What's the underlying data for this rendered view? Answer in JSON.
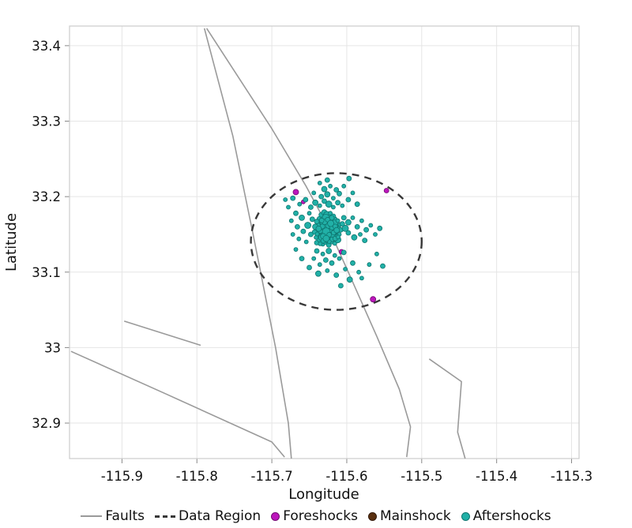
{
  "figure": {
    "background": "#ffffff"
  },
  "chart_data": {
    "type": "scatter",
    "title": "",
    "xlabel": "Longitude",
    "ylabel": "Latitude",
    "xlim": [
      -115.97,
      -115.29
    ],
    "ylim": [
      32.853,
      33.426
    ],
    "grid": true,
    "grid_color": "#e5e5e5",
    "frame_color": "#cccccc",
    "x_ticks": [
      -115.9,
      -115.8,
      -115.7,
      -115.6,
      -115.5,
      -115.4,
      -115.3
    ],
    "x_tick_labels": [
      "-115.9",
      "-115.8",
      "-115.7",
      "-115.6",
      "-115.5",
      "-115.4",
      "-115.3"
    ],
    "y_ticks": [
      32.9,
      33.0,
      33.1,
      33.2,
      33.3,
      33.4
    ],
    "y_tick_labels": [
      "32.9",
      "33",
      "33.1",
      "33.2",
      "33.3",
      "33.4"
    ],
    "legend_position": "bottom",
    "faults": {
      "label": "Faults",
      "color": "#9a9a9a",
      "width": 1.6,
      "lines": [
        [
          [
            -115.787,
            33.423
          ],
          [
            -115.7,
            33.29
          ],
          [
            -115.655,
            33.215
          ],
          [
            -115.625,
            33.16
          ],
          [
            -115.598,
            33.1
          ],
          [
            -115.56,
            33.015
          ],
          [
            -115.53,
            32.945
          ],
          [
            -115.515,
            32.895
          ],
          [
            -115.52,
            32.855
          ]
        ],
        [
          [
            -115.79,
            33.423
          ],
          [
            -115.752,
            33.28
          ],
          [
            -115.725,
            33.15
          ],
          [
            -115.695,
            33.0
          ],
          [
            -115.678,
            32.9
          ],
          [
            -115.674,
            32.853
          ]
        ],
        [
          [
            -115.968,
            32.995
          ],
          [
            -115.84,
            32.938
          ],
          [
            -115.7,
            32.875
          ],
          [
            -115.683,
            32.855
          ]
        ],
        [
          [
            -115.897,
            33.035
          ],
          [
            -115.795,
            33.003
          ]
        ],
        [
          [
            -115.49,
            32.985
          ],
          [
            -115.447,
            32.955
          ],
          [
            -115.452,
            32.888
          ],
          [
            -115.442,
            32.853
          ]
        ]
      ]
    },
    "data_region": {
      "label": "Data Region",
      "color": "#383838",
      "width": 2.4,
      "dash": "9 7",
      "ellipse": {
        "cx": -115.614,
        "cy": 33.1405,
        "rx": 0.114,
        "ry": 0.0905
      }
    },
    "series": [
      {
        "name": "Foreshocks",
        "color": "#bc16bc",
        "stroke": "#730b73",
        "points": [
          [
            -115.668,
            33.206,
            3.5
          ],
          [
            -115.547,
            33.208,
            3
          ],
          [
            -115.607,
            33.127,
            3
          ],
          [
            -115.565,
            33.064,
            3.5
          ],
          [
            -115.658,
            33.193,
            2.5
          ],
          [
            -115.623,
            33.147,
            3
          ]
        ]
      },
      {
        "name": "Mainshock",
        "color": "#5a3010",
        "stroke": "#32190a",
        "points": [
          [
            -115.624,
            33.157,
            5.5
          ]
        ]
      },
      {
        "name": "Aftershocks",
        "color": "#21b0a7",
        "stroke": "#0e756f",
        "points": [
          [
            -115.64,
            33.139,
            3
          ],
          [
            -115.636,
            33.144,
            4
          ],
          [
            -115.632,
            33.137,
            2.5
          ],
          [
            -115.628,
            33.142,
            5
          ],
          [
            -115.624,
            33.136,
            3
          ],
          [
            -115.62,
            33.141,
            3.5
          ],
          [
            -115.616,
            33.138,
            2.5
          ],
          [
            -115.612,
            33.143,
            4
          ],
          [
            -115.637,
            33.149,
            3
          ],
          [
            -115.633,
            33.152,
            5.5
          ],
          [
            -115.629,
            33.147,
            3
          ],
          [
            -115.625,
            33.151,
            4.5
          ],
          [
            -115.621,
            33.146,
            2.5
          ],
          [
            -115.617,
            33.15,
            3.5
          ],
          [
            -115.613,
            33.147,
            3
          ],
          [
            -115.639,
            33.155,
            2.5
          ],
          [
            -115.635,
            33.158,
            4
          ],
          [
            -115.631,
            33.154,
            6
          ],
          [
            -115.627,
            33.157,
            3
          ],
          [
            -115.623,
            33.153,
            4
          ],
          [
            -115.619,
            33.156,
            2.5
          ],
          [
            -115.615,
            33.154,
            3.5
          ],
          [
            -115.611,
            33.158,
            3
          ],
          [
            -115.638,
            33.162,
            3.5
          ],
          [
            -115.634,
            33.165,
            2.5
          ],
          [
            -115.63,
            33.161,
            4.5
          ],
          [
            -115.626,
            33.164,
            3
          ],
          [
            -115.622,
            33.16,
            5
          ],
          [
            -115.618,
            33.163,
            3
          ],
          [
            -115.614,
            33.161,
            2.5
          ],
          [
            -115.636,
            33.169,
            3
          ],
          [
            -115.632,
            33.172,
            4
          ],
          [
            -115.628,
            33.168,
            3.5
          ],
          [
            -115.624,
            33.171,
            2.5
          ],
          [
            -115.62,
            33.167,
            4
          ],
          [
            -115.616,
            33.17,
            3
          ],
          [
            -115.634,
            33.176,
            3
          ],
          [
            -115.63,
            33.179,
            3.5
          ],
          [
            -115.626,
            33.175,
            5
          ],
          [
            -115.622,
            33.178,
            2.5
          ],
          [
            -115.618,
            33.174,
            3
          ],
          [
            -115.641,
            33.146,
            2.5
          ],
          [
            -115.643,
            33.153,
            3
          ],
          [
            -115.642,
            33.16,
            3.5
          ],
          [
            -115.61,
            33.15,
            2.5
          ],
          [
            -115.608,
            33.156,
            3
          ],
          [
            -115.609,
            33.163,
            2.5
          ],
          [
            -115.625,
            33.145,
            6
          ],
          [
            -115.629,
            33.15,
            5
          ],
          [
            -115.633,
            33.146,
            4.5
          ],
          [
            -115.621,
            33.151,
            5.5
          ],
          [
            -115.626,
            33.154,
            4
          ],
          [
            -115.63,
            33.157,
            5
          ],
          [
            -115.623,
            33.158,
            4.5
          ],
          [
            -115.627,
            33.161,
            5.5
          ],
          [
            -115.631,
            33.164,
            4
          ],
          [
            -115.624,
            33.166,
            3.5
          ],
          [
            -115.628,
            33.172,
            4.5
          ],
          [
            -115.62,
            33.172,
            3
          ],
          [
            -115.616,
            33.165,
            4
          ],
          [
            -115.612,
            33.168,
            2.5
          ],
          [
            -115.637,
            33.171,
            2.5
          ],
          [
            -115.64,
            33.167,
            3
          ],
          [
            -115.6265,
            33.1485,
            3.5
          ],
          [
            -115.6305,
            33.1525,
            4
          ],
          [
            -115.6225,
            33.1555,
            3
          ],
          [
            -115.6285,
            33.1585,
            4.5
          ],
          [
            -115.6245,
            33.1615,
            3.5
          ],
          [
            -115.6325,
            33.1605,
            3
          ],
          [
            -115.6195,
            33.1595,
            3.5
          ],
          [
            -115.6275,
            33.1535,
            5
          ],
          [
            -115.6235,
            33.1495,
            3
          ],
          [
            -115.6315,
            33.1475,
            3.5
          ],
          [
            -115.6355,
            33.1545,
            3
          ],
          [
            -115.6175,
            33.1525,
            3
          ],
          [
            -115.6295,
            33.1665,
            3.5
          ],
          [
            -115.6255,
            33.1695,
            3
          ],
          [
            -115.6215,
            33.1645,
            4
          ],
          [
            -115.6335,
            33.1685,
            3
          ],
          [
            -115.6375,
            33.1575,
            3.5
          ],
          [
            -115.6155,
            33.1605,
            3
          ],
          [
            -115.6135,
            33.1555,
            3.5
          ],
          [
            -115.6195,
            33.1435,
            3
          ],
          [
            -115.6235,
            33.1405,
            2.5
          ],
          [
            -115.6155,
            33.1445,
            3
          ],
          [
            -115.6315,
            33.1415,
            3
          ],
          [
            -115.6355,
            33.1375,
            2.5
          ],
          [
            -115.6275,
            33.1445,
            4
          ],
          [
            -115.6395,
            33.1505,
            2.5
          ],
          [
            -115.6115,
            33.1465,
            2.5
          ],
          [
            -115.648,
            33.186,
            3
          ],
          [
            -115.642,
            33.192,
            3.5
          ],
          [
            -115.636,
            33.188,
            2.5
          ],
          [
            -115.63,
            33.194,
            3
          ],
          [
            -115.624,
            33.19,
            4
          ],
          [
            -115.618,
            33.186,
            2.5
          ],
          [
            -115.612,
            33.192,
            3
          ],
          [
            -115.606,
            33.188,
            2.5
          ],
          [
            -115.634,
            33.2,
            3
          ],
          [
            -115.626,
            33.203,
            3.5
          ],
          [
            -115.618,
            33.198,
            2.5
          ],
          [
            -115.61,
            33.204,
            3
          ],
          [
            -115.63,
            33.21,
            3.5
          ],
          [
            -115.622,
            33.214,
            2.5
          ],
          [
            -115.614,
            33.209,
            3
          ],
          [
            -115.636,
            33.218,
            2.5
          ],
          [
            -115.626,
            33.222,
            3
          ],
          [
            -115.604,
            33.214,
            2.5
          ],
          [
            -115.598,
            33.196,
            3
          ],
          [
            -115.592,
            33.205,
            2.5
          ],
          [
            -115.586,
            33.19,
            3
          ],
          [
            -115.597,
            33.224,
            3
          ],
          [
            -115.644,
            33.205,
            2.5
          ],
          [
            -115.655,
            33.196,
            3
          ],
          [
            -115.663,
            33.19,
            2.5
          ],
          [
            -115.672,
            33.198,
            3
          ],
          [
            -115.678,
            33.186,
            2.5
          ],
          [
            -115.668,
            33.178,
            3
          ],
          [
            -115.674,
            33.168,
            2.5
          ],
          [
            -115.66,
            33.172,
            3.5
          ],
          [
            -115.666,
            33.16,
            3
          ],
          [
            -115.672,
            33.15,
            2.5
          ],
          [
            -115.658,
            33.154,
            3
          ],
          [
            -115.664,
            33.144,
            2.5
          ],
          [
            -115.652,
            33.162,
            4
          ],
          [
            -115.648,
            33.15,
            3
          ],
          [
            -115.654,
            33.14,
            2.5
          ],
          [
            -115.646,
            33.17,
            3
          ],
          [
            -115.65,
            33.178,
            2.5
          ],
          [
            -115.682,
            33.196,
            2.5
          ],
          [
            -115.604,
            33.172,
            3
          ],
          [
            -115.598,
            33.166,
            3.5
          ],
          [
            -115.592,
            33.172,
            2.5
          ],
          [
            -115.586,
            33.16,
            3
          ],
          [
            -115.58,
            33.168,
            2.5
          ],
          [
            -115.574,
            33.156,
            3
          ],
          [
            -115.568,
            33.162,
            2.5
          ],
          [
            -115.598,
            33.152,
            3
          ],
          [
            -115.59,
            33.146,
            3.5
          ],
          [
            -115.582,
            33.15,
            2.5
          ],
          [
            -115.576,
            33.142,
            3
          ],
          [
            -115.562,
            33.15,
            2.5
          ],
          [
            -115.556,
            33.158,
            3
          ],
          [
            -115.602,
            33.158,
            4
          ],
          [
            -115.606,
            33.164,
            3
          ],
          [
            -115.64,
            33.128,
            3
          ],
          [
            -115.632,
            33.124,
            2.5
          ],
          [
            -115.624,
            33.128,
            3.5
          ],
          [
            -115.616,
            33.122,
            2.5
          ],
          [
            -115.628,
            33.116,
            3
          ],
          [
            -115.636,
            33.11,
            2.5
          ],
          [
            -115.62,
            33.112,
            3
          ],
          [
            -115.61,
            33.118,
            2.5
          ],
          [
            -115.604,
            33.126,
            3
          ],
          [
            -115.644,
            33.118,
            2.5
          ],
          [
            -115.65,
            33.106,
            3
          ],
          [
            -115.638,
            33.098,
            3.5
          ],
          [
            -115.626,
            33.102,
            2.5
          ],
          [
            -115.614,
            33.096,
            3
          ],
          [
            -115.602,
            33.104,
            2.5
          ],
          [
            -115.592,
            33.112,
            3
          ],
          [
            -115.584,
            33.1,
            2.5
          ],
          [
            -115.66,
            33.118,
            3
          ],
          [
            -115.668,
            33.13,
            2.5
          ],
          [
            -115.596,
            33.09,
            3.5
          ],
          [
            -115.58,
            33.092,
            2.5
          ],
          [
            -115.608,
            33.082,
            3
          ],
          [
            -115.57,
            33.11,
            2.5
          ],
          [
            -115.552,
            33.108,
            3
          ],
          [
            -115.56,
            33.124,
            2.5
          ]
        ]
      }
    ]
  }
}
